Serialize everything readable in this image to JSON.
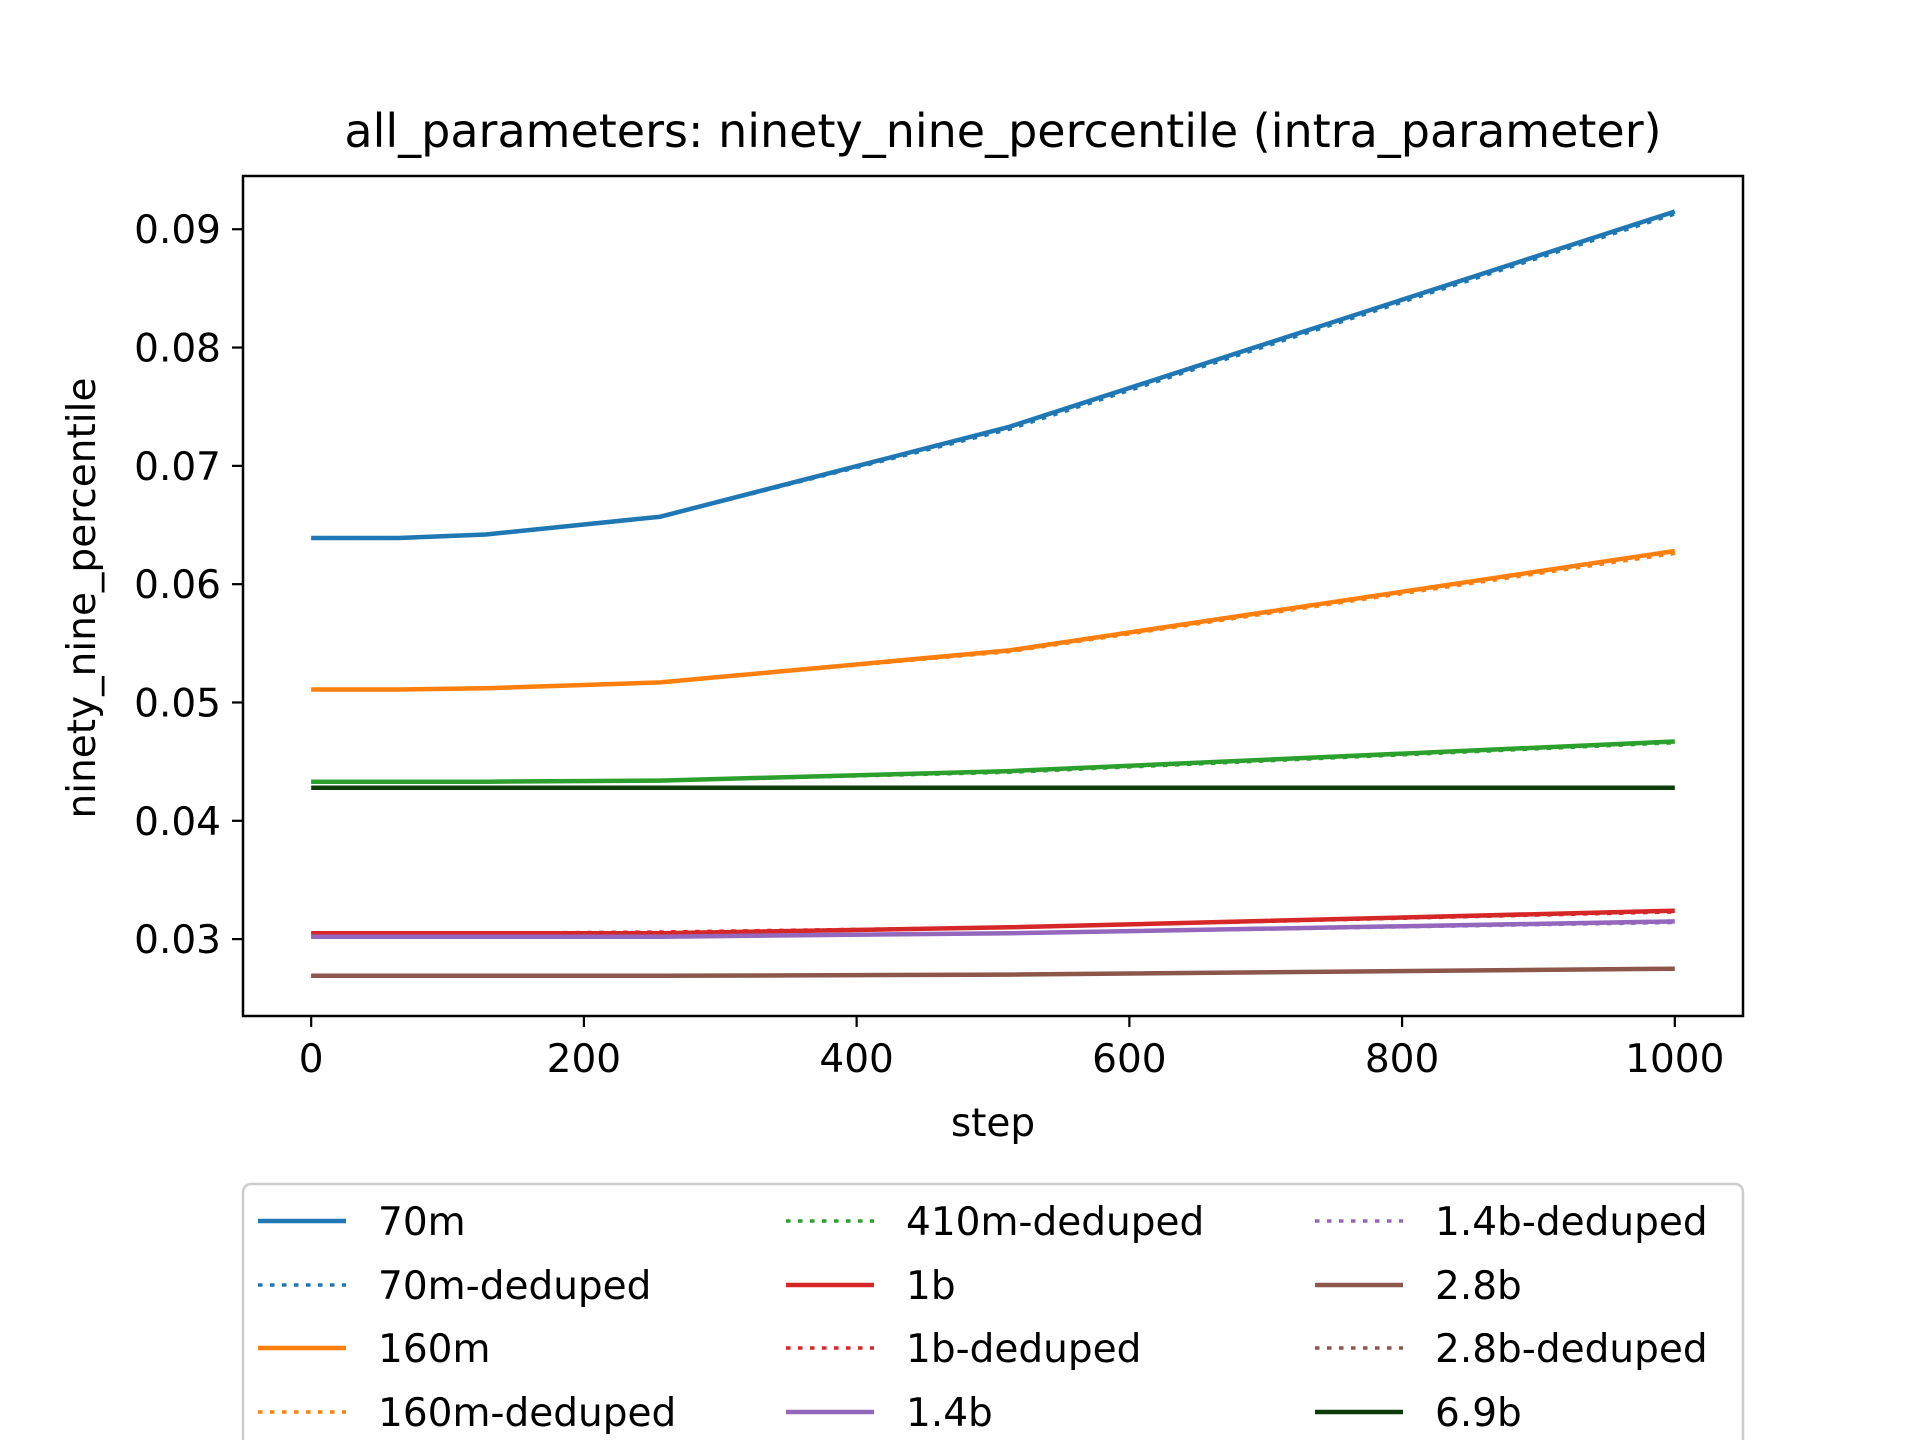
{
  "chart_data": {
    "type": "line",
    "title": "all_parameters: ninety_nine_percentile (intra_parameter)",
    "xlabel": "step",
    "ylabel": "ninety_nine_percentile",
    "xlim": [
      -50,
      1050
    ],
    "ylim": [
      0.0235,
      0.0945
    ],
    "xticks": [
      0,
      200,
      400,
      600,
      800,
      1000
    ],
    "yticks": [
      0.03,
      0.04,
      0.05,
      0.06,
      0.07,
      0.08,
      0.09
    ],
    "ytick_labels": [
      "0.03",
      "0.04",
      "0.05",
      "0.06",
      "0.07",
      "0.08",
      "0.09"
    ],
    "grid": false,
    "legend_position": "below",
    "x": [
      0,
      64,
      128,
      256,
      512,
      1000
    ],
    "series": [
      {
        "name": "70m",
        "color": "#1f77b4",
        "style": "solid",
        "values": [
          0.0639,
          0.0639,
          0.0642,
          0.0657,
          0.0733,
          0.0915
        ]
      },
      {
        "name": "70m-deduped",
        "color": "#1f77b4",
        "style": "dotted",
        "values": [
          0.0639,
          0.0639,
          0.0642,
          0.0657,
          0.0731,
          0.0913
        ]
      },
      {
        "name": "160m",
        "color": "#ff7f0e",
        "style": "solid",
        "values": [
          0.0511,
          0.0511,
          0.0512,
          0.0517,
          0.0544,
          0.0628
        ]
      },
      {
        "name": "160m-deduped",
        "color": "#ff7f0e",
        "style": "dotted",
        "values": [
          0.0511,
          0.0511,
          0.0512,
          0.0517,
          0.0543,
          0.0626
        ]
      },
      {
        "name": "410m-deduped",
        "color": "#2ca02c",
        "style": "dotted",
        "values": [
          0.0433,
          0.0433,
          0.0433,
          0.0434,
          0.0441,
          0.0466
        ]
      },
      {
        "name": "1b",
        "color": "#d62728",
        "style": "solid",
        "values": [
          0.0305,
          0.0305,
          0.0305,
          0.0305,
          0.031,
          0.0324
        ]
      },
      {
        "name": "1b-deduped",
        "color": "#d62728",
        "style": "dotted",
        "values": [
          0.0305,
          0.0305,
          0.0305,
          0.0306,
          0.031,
          0.0323
        ]
      },
      {
        "name": "1.4b",
        "color": "#9467bd",
        "style": "solid",
        "values": [
          0.0302,
          0.0302,
          0.0302,
          0.0302,
          0.0305,
          0.0315
        ]
      },
      {
        "name": "1.4b-deduped",
        "color": "#9467bd",
        "style": "dotted",
        "values": [
          0.0302,
          0.0302,
          0.0302,
          0.0302,
          0.0305,
          0.0314
        ]
      },
      {
        "name": "2.8b",
        "color": "#8c564b",
        "style": "solid",
        "values": [
          0.0269,
          0.0269,
          0.0269,
          0.0269,
          0.027,
          0.0275
        ]
      },
      {
        "name": "2.8b-deduped",
        "color": "#8c564b",
        "style": "dotted",
        "values": [
          0.0269,
          0.0269,
          0.0269,
          0.0269,
          0.027,
          0.0275
        ]
      },
      {
        "name": "6.9b",
        "color": "#0b3d0b",
        "style": "solid",
        "values": [
          0.0428,
          0.0428,
          0.0428,
          0.0428,
          0.0428,
          0.0428
        ]
      }
    ],
    "extra_lines": [
      {
        "color": "#2ca02c",
        "style": "solid",
        "values": [
          0.0433,
          0.0433,
          0.0433,
          0.0434,
          0.0442,
          0.0467
        ]
      }
    ]
  }
}
